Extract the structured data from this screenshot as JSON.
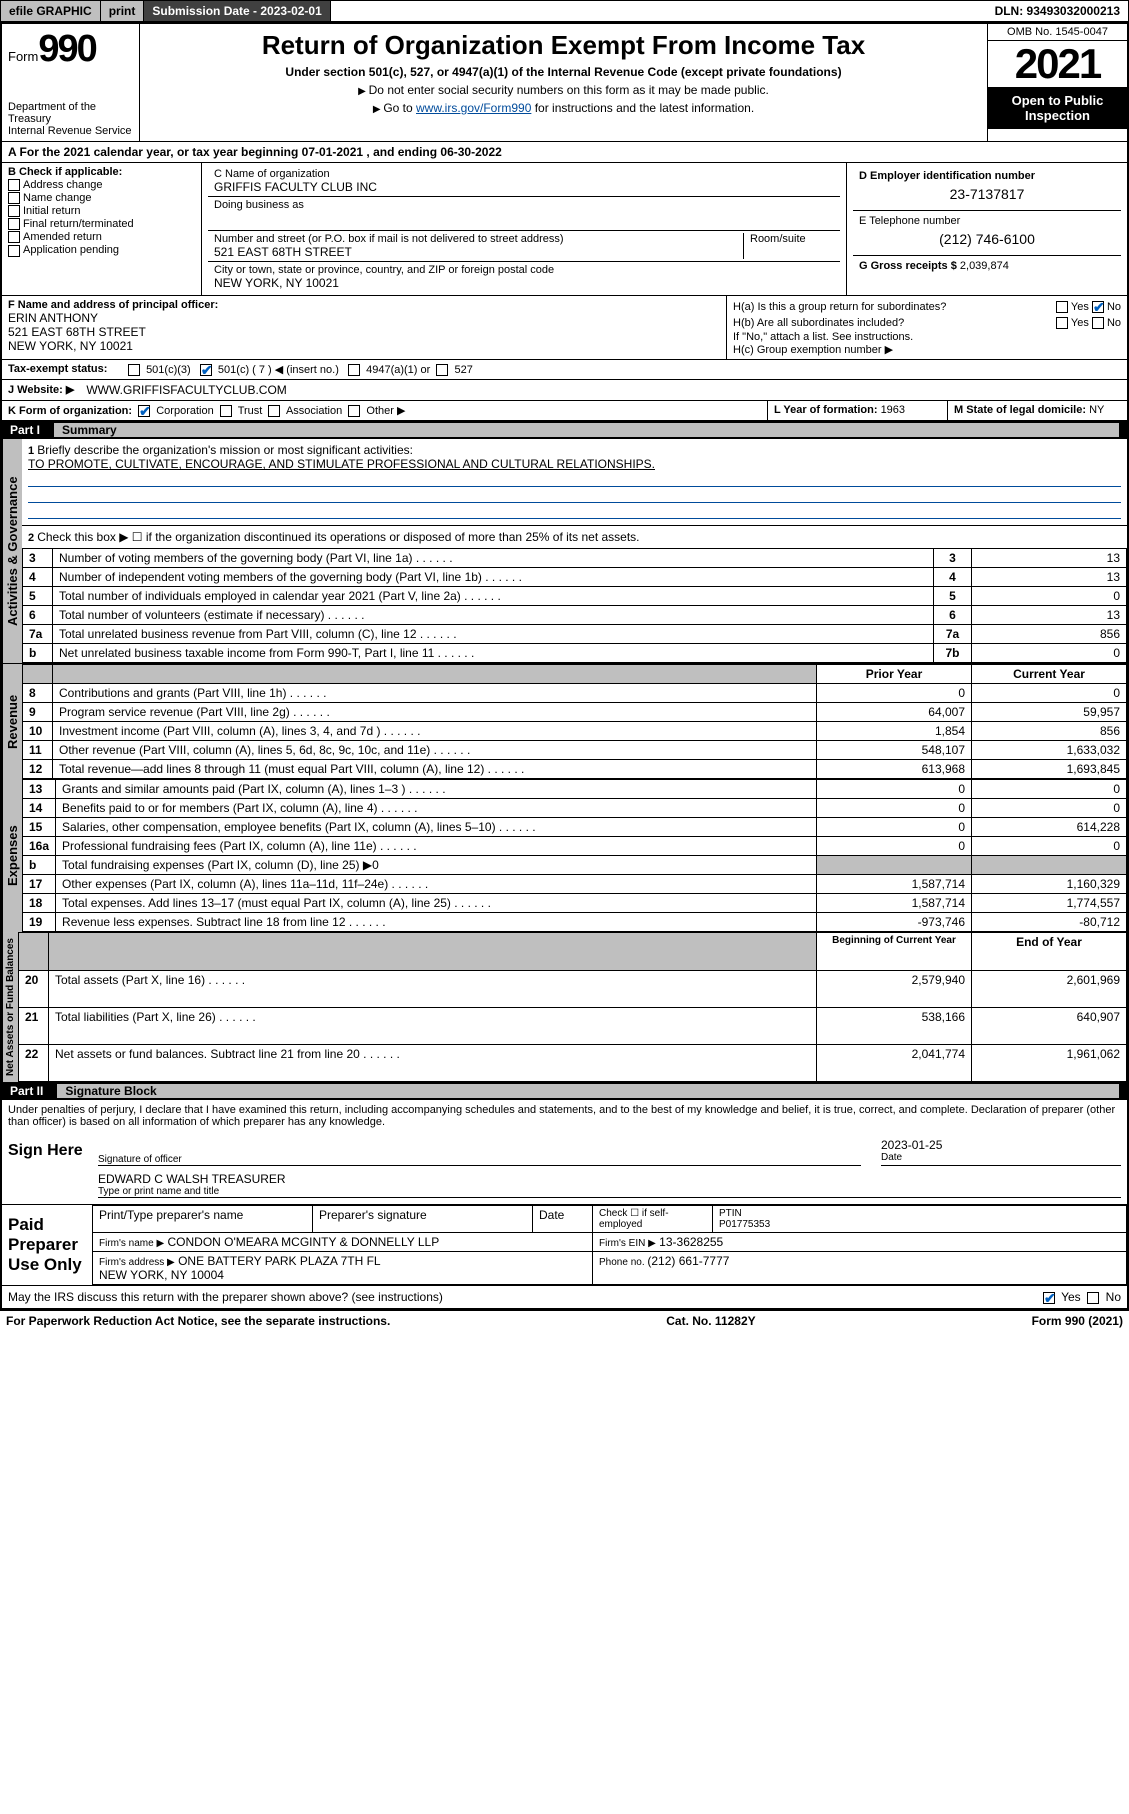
{
  "topbar": {
    "efile": "efile GRAPHIC",
    "print": "print",
    "subdate_lbl": "Submission Date - 2023-02-01",
    "dln": "DLN: 93493032000213"
  },
  "header": {
    "form_prefix": "Form",
    "form_num": "990",
    "dept": "Department of the Treasury",
    "irs": "Internal Revenue Service",
    "title": "Return of Organization Exempt From Income Tax",
    "sub": "Under section 501(c), 527, or 4947(a)(1) of the Internal Revenue Code (except private foundations)",
    "note1": "Do not enter social security numbers on this form as it may be made public.",
    "note2_pre": "Go to ",
    "note2_link": "www.irs.gov/Form990",
    "note2_post": " for instructions and the latest information.",
    "omb": "OMB No. 1545-0047",
    "year": "2021",
    "open": "Open to Public Inspection"
  },
  "period": {
    "a": "A For the 2021 calendar year, or tax year beginning ",
    "begin": "07-01-2021",
    "mid": " , and ending ",
    "end": "06-30-2022"
  },
  "colB": {
    "hdr": "B Check if applicable:",
    "addr": "Address change",
    "name": "Name change",
    "init": "Initial return",
    "final": "Final return/terminated",
    "amend": "Amended return",
    "app": "Application pending"
  },
  "colC": {
    "name_lbl": "C Name of organization",
    "name": "GRIFFIS FACULTY CLUB INC",
    "dba_lbl": "Doing business as",
    "addr_lbl": "Number and street (or P.O. box if mail is not delivered to street address)",
    "room_lbl": "Room/suite",
    "addr": "521 EAST 68TH STREET",
    "city_lbl": "City or town, state or province, country, and ZIP or foreign postal code",
    "city": "NEW YORK, NY  10021",
    "f_lbl": "F Name and address of principal officer:",
    "f_name": "ERIN ANTHONY",
    "f_addr1": "521 EAST 68TH STREET",
    "f_addr2": "NEW YORK, NY  10021"
  },
  "colD": {
    "ein_lbl": "D Employer identification number",
    "ein": "23-7137817",
    "phone_lbl": "E Telephone number",
    "phone": "(212) 746-6100",
    "gross_lbl": "G Gross receipts $ ",
    "gross": "2,039,874"
  },
  "hblock": {
    "ha": "H(a)  Is this a group return for subordinates?",
    "hb": "H(b)  Are all subordinates included?",
    "hb_note": "If \"No,\" attach a list. See instructions.",
    "hc": "H(c)  Group exemption number ▶",
    "yes": "Yes",
    "no": "No"
  },
  "status": {
    "i_lbl": "Tax-exempt status:",
    "c3": "501(c)(3)",
    "c": "501(c) ( 7 ) ◀ (insert no.)",
    "a1": "4947(a)(1) or",
    "s527": "527",
    "j_lbl": "J  Website: ▶",
    "website": "WWW.GRIFFISFACULTYCLUB.COM",
    "k_lbl": "K Form of organization:",
    "corp": "Corporation",
    "trust": "Trust",
    "assoc": "Association",
    "other": "Other ▶",
    "l_lbl": "L Year of formation: ",
    "l_val": "1963",
    "m_lbl": "M State of legal domicile: ",
    "m_val": "NY"
  },
  "part1": {
    "part": "Part I",
    "title": "Summary",
    "side_gov": "Activities & Governance",
    "side_rev": "Revenue",
    "side_exp": "Expenses",
    "side_net": "Net Assets or Fund Balances",
    "l1": "Briefly describe the organization's mission or most significant activities:",
    "mission": "TO PROMOTE, CULTIVATE, ENCOURAGE, AND STIMULATE PROFESSIONAL AND CULTURAL RELATIONSHIPS.",
    "l2": "Check this box ▶ ☐  if the organization discontinued its operations or disposed of more than 25% of its net assets.",
    "rows_gov": [
      {
        "n": "3",
        "t": "Number of voting members of the governing body (Part VI, line 1a)",
        "b": "3",
        "v": "13"
      },
      {
        "n": "4",
        "t": "Number of independent voting members of the governing body (Part VI, line 1b)",
        "b": "4",
        "v": "13"
      },
      {
        "n": "5",
        "t": "Total number of individuals employed in calendar year 2021 (Part V, line 2a)",
        "b": "5",
        "v": "0"
      },
      {
        "n": "6",
        "t": "Total number of volunteers (estimate if necessary)",
        "b": "6",
        "v": "13"
      },
      {
        "n": "7a",
        "t": "Total unrelated business revenue from Part VIII, column (C), line 12",
        "b": "7a",
        "v": "856"
      },
      {
        "n": "b",
        "t": "Net unrelated business taxable income from Form 990-T, Part I, line 11",
        "b": "7b",
        "v": "0"
      }
    ],
    "col_prior": "Prior Year",
    "col_curr": "Current Year",
    "rows_rev": [
      {
        "n": "8",
        "t": "Contributions and grants (Part VIII, line 1h)",
        "p": "0",
        "c": "0"
      },
      {
        "n": "9",
        "t": "Program service revenue (Part VIII, line 2g)",
        "p": "64,007",
        "c": "59,957"
      },
      {
        "n": "10",
        "t": "Investment income (Part VIII, column (A), lines 3, 4, and 7d )",
        "p": "1,854",
        "c": "856"
      },
      {
        "n": "11",
        "t": "Other revenue (Part VIII, column (A), lines 5, 6d, 8c, 9c, 10c, and 11e)",
        "p": "548,107",
        "c": "1,633,032"
      },
      {
        "n": "12",
        "t": "Total revenue—add lines 8 through 11 (must equal Part VIII, column (A), line 12)",
        "p": "613,968",
        "c": "1,693,845"
      }
    ],
    "rows_exp": [
      {
        "n": "13",
        "t": "Grants and similar amounts paid (Part IX, column (A), lines 1–3 )",
        "p": "0",
        "c": "0"
      },
      {
        "n": "14",
        "t": "Benefits paid to or for members (Part IX, column (A), line 4)",
        "p": "0",
        "c": "0"
      },
      {
        "n": "15",
        "t": "Salaries, other compensation, employee benefits (Part IX, column (A), lines 5–10)",
        "p": "0",
        "c": "614,228"
      },
      {
        "n": "16a",
        "t": "Professional fundraising fees (Part IX, column (A), line 11e)",
        "p": "0",
        "c": "0"
      },
      {
        "n": "b",
        "t": "Total fundraising expenses (Part IX, column (D), line 25) ▶0",
        "p": "",
        "c": "",
        "shade": true
      },
      {
        "n": "17",
        "t": "Other expenses (Part IX, column (A), lines 11a–11d, 11f–24e)",
        "p": "1,587,714",
        "c": "1,160,329"
      },
      {
        "n": "18",
        "t": "Total expenses. Add lines 13–17 (must equal Part IX, column (A), line 25)",
        "p": "1,587,714",
        "c": "1,774,557"
      },
      {
        "n": "19",
        "t": "Revenue less expenses. Subtract line 18 from line 12",
        "p": "-973,746",
        "c": "-80,712"
      }
    ],
    "col_begin": "Beginning of Current Year",
    "col_end": "End of Year",
    "rows_net": [
      {
        "n": "20",
        "t": "Total assets (Part X, line 16)",
        "p": "2,579,940",
        "c": "2,601,969"
      },
      {
        "n": "21",
        "t": "Total liabilities (Part X, line 26)",
        "p": "538,166",
        "c": "640,907"
      },
      {
        "n": "22",
        "t": "Net assets or fund balances. Subtract line 21 from line 20",
        "p": "2,041,774",
        "c": "1,961,062"
      }
    ]
  },
  "part2": {
    "part": "Part II",
    "title": "Signature Block",
    "decl": "Under penalties of perjury, I declare that I have examined this return, including accompanying schedules and statements, and to the best of my knowledge and belief, it is true, correct, and complete. Declaration of preparer (other than officer) is based on all information of which preparer has any knowledge.",
    "sign_here": "Sign Here",
    "sig_officer": "Signature of officer",
    "sig_date": "2023-01-25",
    "date_lbl": "Date",
    "officer_name": "EDWARD C WALSH  TREASURER",
    "name_lbl": "Type or print name and title",
    "paid": "Paid Preparer Use Only",
    "prep_name_lbl": "Print/Type preparer's name",
    "prep_sig_lbl": "Preparer's signature",
    "check_lbl": "Check ☐ if self-employed",
    "ptin_lbl": "PTIN",
    "ptin": "P01775353",
    "firm_name_lbl": "Firm's name    ▶",
    "firm_name": "CONDON O'MEARA MCGINTY & DONNELLY LLP",
    "firm_ein_lbl": "Firm's EIN ▶",
    "firm_ein": "13-3628255",
    "firm_addr_lbl": "Firm's address ▶",
    "firm_addr1": "ONE BATTERY PARK PLAZA 7TH FL",
    "firm_addr2": "NEW YORK, NY  10004",
    "firm_phone_lbl": "Phone no. ",
    "firm_phone": "(212) 661-7777",
    "discuss": "May the IRS discuss this return with the preparer shown above? (see instructions)"
  },
  "footer": {
    "pra": "For Paperwork Reduction Act Notice, see the separate instructions.",
    "cat": "Cat. No. 11282Y",
    "form": "Form 990 (2021)"
  }
}
